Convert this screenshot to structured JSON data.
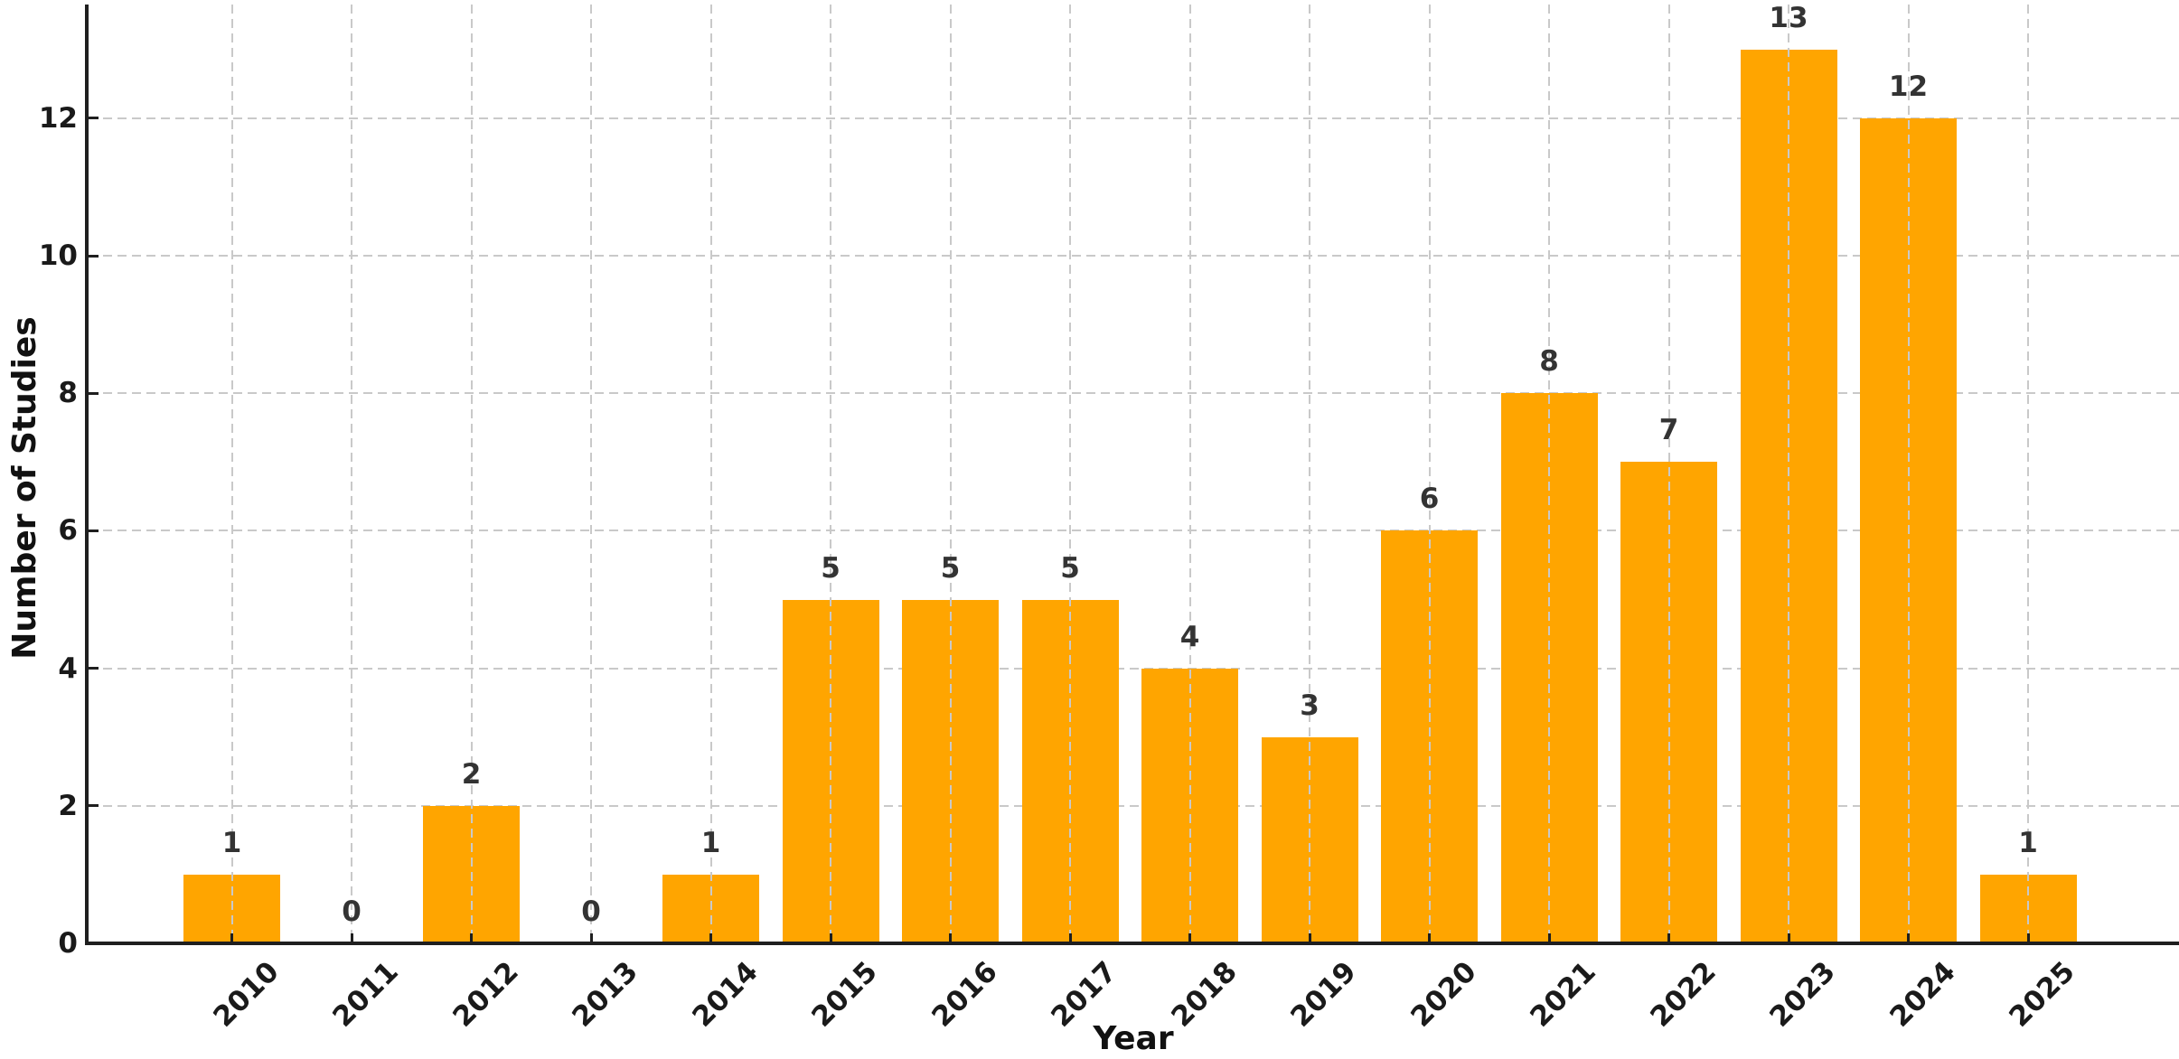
{
  "chart_data": {
    "type": "bar",
    "title": "",
    "xlabel": "Year",
    "ylabel": "Number of Studies",
    "categories": [
      "2010",
      "2011",
      "2012",
      "2013",
      "2014",
      "2015",
      "2016",
      "2017",
      "2018",
      "2019",
      "2020",
      "2021",
      "2022",
      "2023",
      "2024",
      "2025"
    ],
    "values": [
      1,
      0,
      2,
      0,
      1,
      5,
      5,
      5,
      4,
      3,
      6,
      8,
      7,
      13,
      12,
      1
    ],
    "bar_value_labels": [
      "1",
      "0",
      "2",
      "0",
      "1",
      "5",
      "5",
      "5",
      "4",
      "3",
      "6",
      "8",
      "7",
      "13",
      "12",
      "1"
    ],
    "yticks": [
      0,
      2,
      4,
      6,
      8,
      10,
      12
    ],
    "ytick_labels": [
      "0",
      "2",
      "4",
      "6",
      "8",
      "10",
      "12"
    ],
    "ylim": [
      0,
      13.65
    ],
    "grid": {
      "visible": true,
      "style": "dashed",
      "color": "#c9c9c9",
      "vertical_above_bars": true,
      "horizontal_behind_bars": true
    },
    "legend": {
      "visible": false
    },
    "colors": {
      "bar": "#FFA500",
      "value_label": "#333333",
      "tick_label": "#1a1a1a",
      "axis_title": "#111111",
      "spine": "#1f1f1f",
      "background": "#ffffff"
    }
  }
}
